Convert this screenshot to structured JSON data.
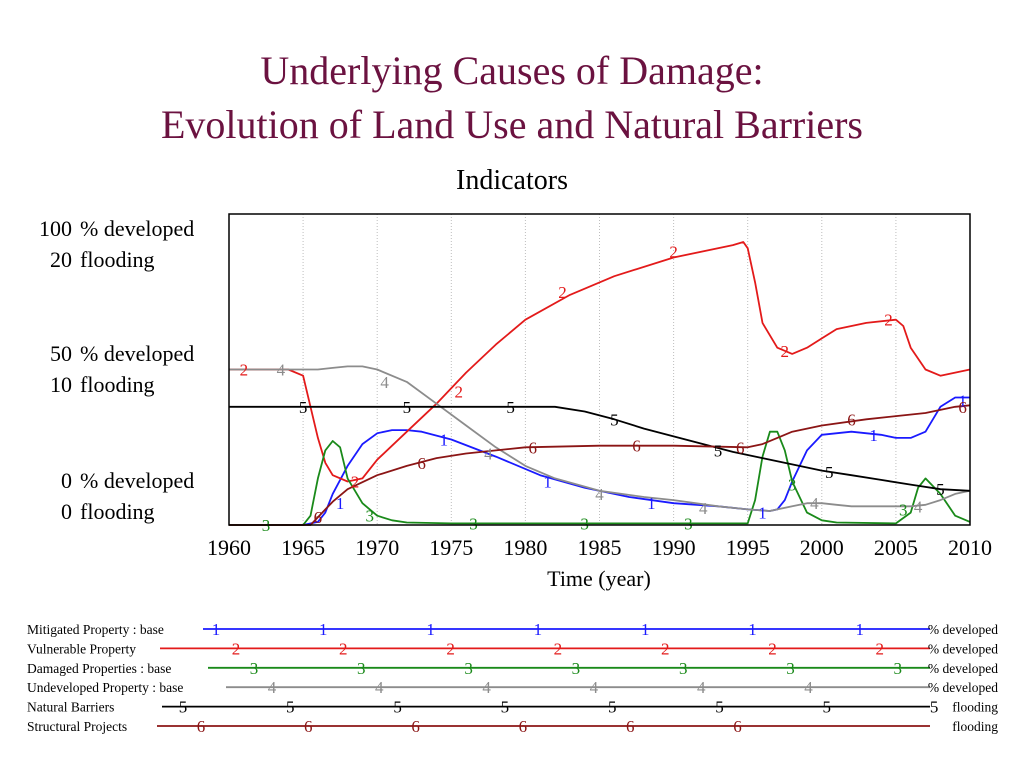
{
  "slide": {
    "title_line_1": "Underlying Causes of Damage:",
    "title_line_2": "Evolution of Land Use and Natural Barriers"
  },
  "chart_data": {
    "type": "line",
    "title": "Indicators",
    "xlabel": "Time (year)",
    "xlim": [
      1960,
      2010
    ],
    "x_ticks": [
      1960,
      1965,
      1970,
      1975,
      1980,
      1985,
      1990,
      1995,
      2000,
      2005,
      2010
    ],
    "grid": true,
    "legend_placement": "bottom",
    "y_axes": [
      {
        "unit": "% developed",
        "range": [
          0,
          100
        ],
        "tick_labels": [
          "100",
          "50",
          "0"
        ]
      },
      {
        "unit": "flooding",
        "range": [
          0,
          20
        ],
        "tick_labels": [
          "20",
          "10",
          "0"
        ]
      }
    ],
    "series": [
      {
        "id": "1",
        "name": "Mitigated Property : base",
        "unit": "% developed",
        "color": "#1a1aff",
        "x": [
          1960,
          1965,
          1966,
          1966.5,
          1967,
          1968,
          1969,
          1970,
          1971,
          1972,
          1973,
          1975,
          1978,
          1981,
          1984,
          1987,
          1990,
          1993,
          1995,
          1996.5,
          1997,
          1997.5,
          1998,
          1999,
          2000,
          2002,
          2004,
          2005,
          2006,
          2007,
          2008,
          2009,
          2010
        ],
        "y": [
          0,
          0,
          1,
          4,
          10,
          19,
          26,
          29.5,
          30.5,
          30.5,
          30,
          27.5,
          22,
          16,
          12,
          9,
          7,
          6,
          5,
          4.5,
          5,
          8,
          14,
          24,
          29,
          30,
          29,
          28,
          28,
          30,
          38,
          41,
          41
        ]
      },
      {
        "id": "2",
        "name": "Vulnerable Property",
        "unit": "% developed",
        "color": "#e31a1a",
        "x": [
          1960,
          1964,
          1965,
          1965.5,
          1966,
          1966.5,
          1967,
          1968,
          1969,
          1970,
          1972,
          1974,
          1976,
          1978,
          1980,
          1983,
          1986,
          1990,
          1994,
          1994.7,
          1995,
          1995.5,
          1996,
          1997,
          1998,
          1999,
          2000,
          2001,
          2003,
          2005,
          2005.5,
          2006,
          2007,
          2008,
          2009,
          2010
        ],
        "y": [
          50,
          50,
          48,
          38,
          28,
          20,
          16,
          14,
          15,
          21,
          30,
          39,
          49,
          58,
          66,
          74,
          80,
          86,
          90,
          91,
          89,
          78,
          65,
          57,
          55,
          57,
          60,
          63,
          65,
          66,
          64,
          57,
          50,
          48,
          49,
          50
        ]
      },
      {
        "id": "3",
        "name": "Damaged Properties : base",
        "unit": "% developed",
        "color": "#1a8a1a",
        "x": [
          1960,
          1964,
          1965,
          1965.5,
          1966,
          1966.5,
          1967,
          1967.5,
          1968,
          1969,
          1970,
          1971,
          1972,
          1975,
          1990,
          1995,
          1995.5,
          1996,
          1996.5,
          1997,
          1997.5,
          1998,
          1999,
          2000,
          2001,
          2005,
          2006,
          2006.5,
          2007,
          2008,
          2009,
          2010
        ],
        "y": [
          0,
          0,
          0,
          3,
          15,
          24,
          27,
          25,
          15,
          7,
          3,
          1.5,
          0.8,
          0.5,
          0.5,
          0.5,
          8,
          22,
          30,
          30,
          24,
          14,
          4,
          1.5,
          0.8,
          0.5,
          4,
          12,
          15,
          10,
          3,
          1
        ]
      },
      {
        "id": "4",
        "name": "Undeveloped Property : base",
        "unit": "% developed",
        "color": "#8c8c8c",
        "x": [
          1960,
          1966,
          1967,
          1968,
          1969,
          1970,
          1972,
          1974,
          1976,
          1978,
          1980,
          1982,
          1985,
          1988,
          1990,
          1993,
          1995,
          1996.5,
          1997,
          1998,
          1999,
          2000,
          2001,
          2002,
          2003,
          2005,
          2006,
          2007,
          2008,
          2009,
          2010
        ],
        "y": [
          50,
          50,
          50.5,
          51,
          51,
          50,
          46,
          39,
          32,
          25,
          19,
          15,
          11,
          9,
          8,
          6,
          5,
          4.5,
          5,
          6,
          7,
          7,
          6.5,
          6,
          6,
          6,
          6,
          6.5,
          8,
          10,
          11
        ]
      },
      {
        "id": "5",
        "name": "Natural Barriers",
        "unit": "flooding",
        "color": "#000000",
        "x": [
          1960,
          1982,
          1984,
          1986,
          1988,
          1990,
          1992,
          1994,
          1996,
          1998,
          2000,
          2002,
          2004,
          2006,
          2008,
          2010
        ],
        "y": [
          7.6,
          7.6,
          7.3,
          6.8,
          6.2,
          5.7,
          5.2,
          4.7,
          4.3,
          3.9,
          3.5,
          3.2,
          2.9,
          2.6,
          2.3,
          2.2
        ]
      },
      {
        "id": "6",
        "name": "Structural Projects",
        "unit": "flooding",
        "color": "#8b1515",
        "x": [
          1960,
          1964,
          1965.5,
          1966,
          1967,
          1968,
          1970,
          1972,
          1974,
          1976,
          1978,
          1980,
          1985,
          1990,
          1995,
          1996,
          1997,
          1998,
          2000,
          2003,
          2005,
          2007,
          2009,
          2010
        ],
        "y": [
          0,
          0,
          0,
          0.5,
          1.5,
          2.3,
          3.2,
          3.8,
          4.3,
          4.6,
          4.8,
          5,
          5.1,
          5.1,
          5,
          5.2,
          5.6,
          6,
          6.4,
          6.8,
          7,
          7.2,
          7.6,
          7.7
        ]
      }
    ],
    "chart_markers": {
      "1": [
        [
          1967.5,
          7
        ],
        [
          1974.5,
          27.5
        ],
        [
          1981.5,
          14
        ],
        [
          1988.5,
          7
        ],
        [
          1996,
          4
        ],
        [
          2003.5,
          29
        ],
        [
          2009.5,
          40
        ]
      ],
      "2": [
        [
          1961,
          50
        ],
        [
          1968.5,
          14
        ],
        [
          1975.5,
          43
        ],
        [
          1982.5,
          75
        ],
        [
          1990,
          88
        ],
        [
          1997.5,
          56
        ],
        [
          2004.5,
          66
        ]
      ],
      "3": [
        [
          1962.5,
          0
        ],
        [
          1969.5,
          3
        ],
        [
          1976.5,
          0.5
        ],
        [
          1984,
          0.5
        ],
        [
          1991,
          0.5
        ],
        [
          1998,
          13
        ],
        [
          2005.5,
          5
        ]
      ],
      "4": [
        [
          1963.5,
          50
        ],
        [
          1970.5,
          46
        ],
        [
          1977.5,
          23
        ],
        [
          1985,
          10
        ],
        [
          1992,
          5.5
        ],
        [
          1999.5,
          7
        ],
        [
          2006.5,
          6
        ]
      ],
      "5": [
        [
          1965,
          7.6
        ],
        [
          1972,
          7.6
        ],
        [
          1979,
          7.6
        ],
        [
          1986,
          6.8
        ],
        [
          1993,
          4.8
        ],
        [
          2000.5,
          3.4
        ],
        [
          2008,
          2.3
        ]
      ],
      "6": [
        [
          1966,
          0.5
        ],
        [
          1973,
          4
        ],
        [
          1980.5,
          5
        ],
        [
          1987.5,
          5.1
        ],
        [
          1994.5,
          5
        ],
        [
          2002,
          6.8
        ],
        [
          2009.5,
          7.6
        ]
      ]
    },
    "legend_markers": {
      "1": [
        1,
        2,
        3,
        4,
        5,
        6,
        7
      ],
      "2": [
        1,
        2,
        3,
        4,
        5,
        6,
        7
      ],
      "3": [
        1,
        2,
        3,
        4,
        5,
        6,
        7
      ],
      "4": [
        1,
        2,
        3,
        4,
        5,
        6
      ],
      "5": [
        1,
        2,
        3,
        4,
        5,
        6,
        7,
        8
      ],
      "6": [
        1,
        2,
        3,
        4,
        5,
        6
      ]
    }
  }
}
